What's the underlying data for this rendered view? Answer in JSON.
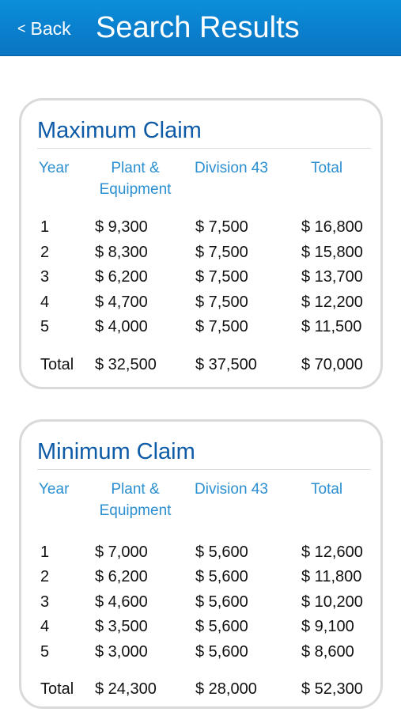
{
  "header": {
    "back_label": "Back",
    "back_chevron": "<",
    "title": "Search Results"
  },
  "columns": {
    "year": "Year",
    "plant": "Plant &\nEquipment",
    "division": "Division 43",
    "total": "Total"
  },
  "maximum": {
    "title": "Maximum Claim",
    "rows": [
      {
        "year": "1",
        "plant": "$ 9,300",
        "division": "$ 7,500",
        "total": "$ 16,800"
      },
      {
        "year": "2",
        "plant": "$ 8,300",
        "division": "$ 7,500",
        "total": "$ 15,800"
      },
      {
        "year": "3",
        "plant": "$ 6,200",
        "division": "$ 7,500",
        "total": "$ 13,700"
      },
      {
        "year": "4",
        "plant": "$ 4,700",
        "division": "$ 7,500",
        "total": "$ 12,200"
      },
      {
        "year": "5",
        "plant": "$ 4,000",
        "division": "$ 7,500",
        "total": "$ 11,500"
      }
    ],
    "totals": {
      "label": "Total",
      "plant": "$ 32,500",
      "division": "$ 37,500",
      "total": "$ 70,000"
    }
  },
  "minimum": {
    "title": "Minimum Claim",
    "rows": [
      {
        "year": "1",
        "plant": "$ 7,000",
        "division": "$ 5,600",
        "total": "$ 12,600"
      },
      {
        "year": "2",
        "plant": "$ 6,200",
        "division": "$ 5,600",
        "total": "$ 11,800"
      },
      {
        "year": "3",
        "plant": "$ 4,600",
        "division": "$ 5,600",
        "total": "$ 10,200"
      },
      {
        "year": "4",
        "plant": "$ 3,500",
        "division": "$ 5,600",
        "total": "$ 9,100"
      },
      {
        "year": "5",
        "plant": "$ 3,000",
        "division": "$ 5,600",
        "total": "$ 8,600"
      }
    ],
    "totals": {
      "label": "Total",
      "plant": "$ 24,300",
      "division": "$ 28,000",
      "total": "$ 52,300"
    }
  },
  "colors": {
    "header_bg": "#0b82cf",
    "card_title": "#0d5aa7",
    "column_header": "#2a8fd1",
    "card_border": "#d9d9d9"
  }
}
